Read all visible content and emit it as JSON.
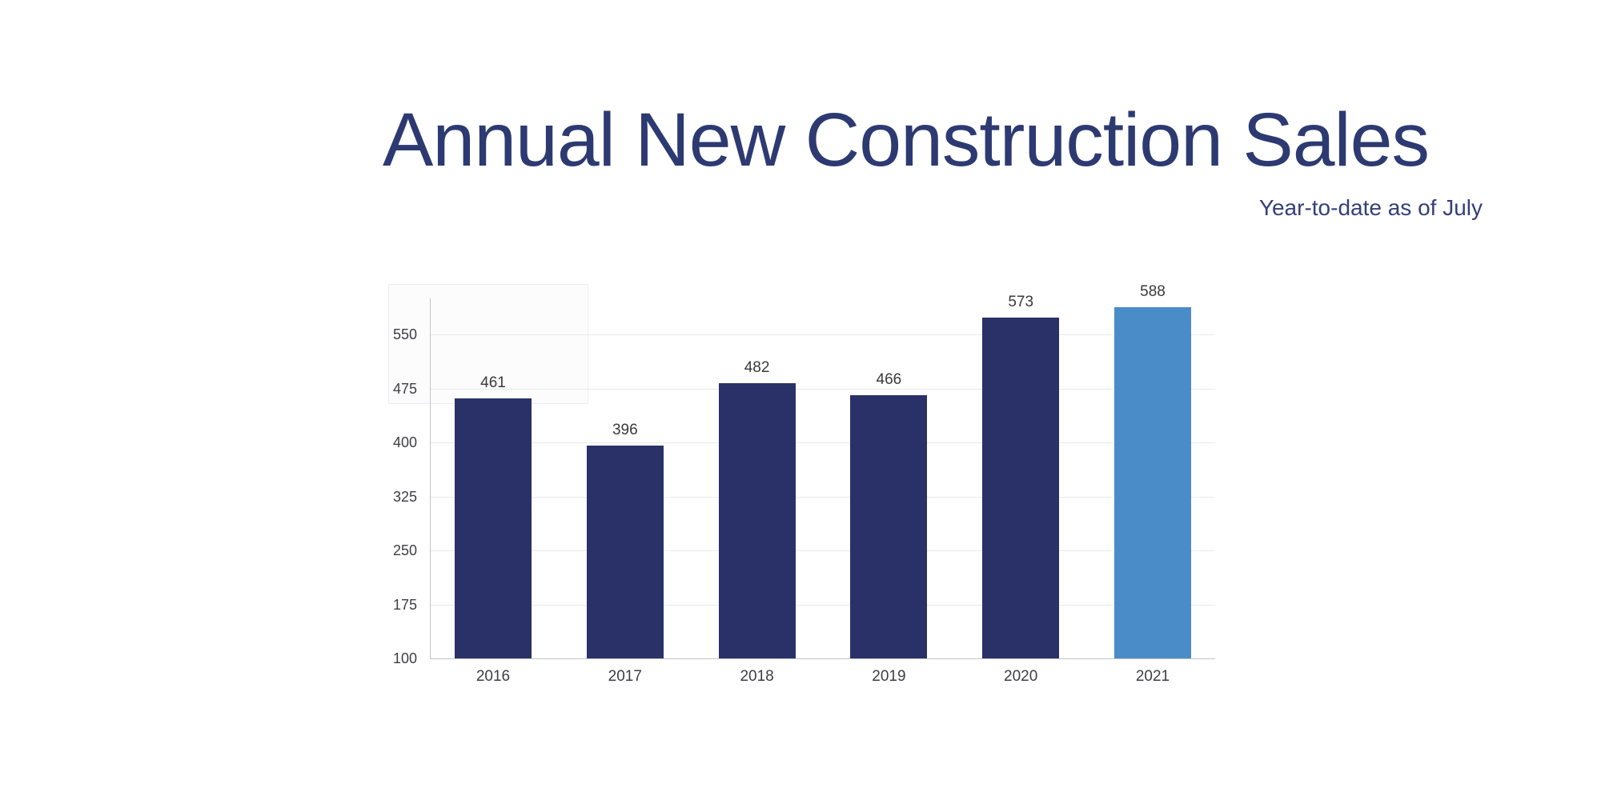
{
  "page": {
    "background": "#ffffff"
  },
  "header": {
    "title": "Annual New Construction Sales",
    "subtitle": "Year-to-date as of July",
    "title_color": "#2d3a72",
    "subtitle_color": "#343f79"
  },
  "chart_data": {
    "type": "bar",
    "title": "Annual New Construction Sales",
    "subtitle": "Year-to-date as of July",
    "categories": [
      "2016",
      "2017",
      "2018",
      "2019",
      "2020",
      "2021"
    ],
    "values": [
      461,
      396,
      482,
      466,
      573,
      588
    ],
    "highlight_index": 5,
    "xlabel": "",
    "ylabel": "",
    "y_axis": {
      "min": 100,
      "max": 550,
      "step": 75,
      "ticks": [
        100,
        175,
        250,
        325,
        400,
        475,
        550
      ]
    },
    "grid": true,
    "legend": false,
    "value_labels_shown": true,
    "colors": {
      "bar_default": "#293168",
      "bar_highlight": "#4a8cc7",
      "gridline": "#e9e9ee",
      "axis_line": "#c4c4c9",
      "tick_label": "#3e3e42",
      "value_label": "#3a3a3a",
      "x_label": "#3e3e42"
    }
  }
}
